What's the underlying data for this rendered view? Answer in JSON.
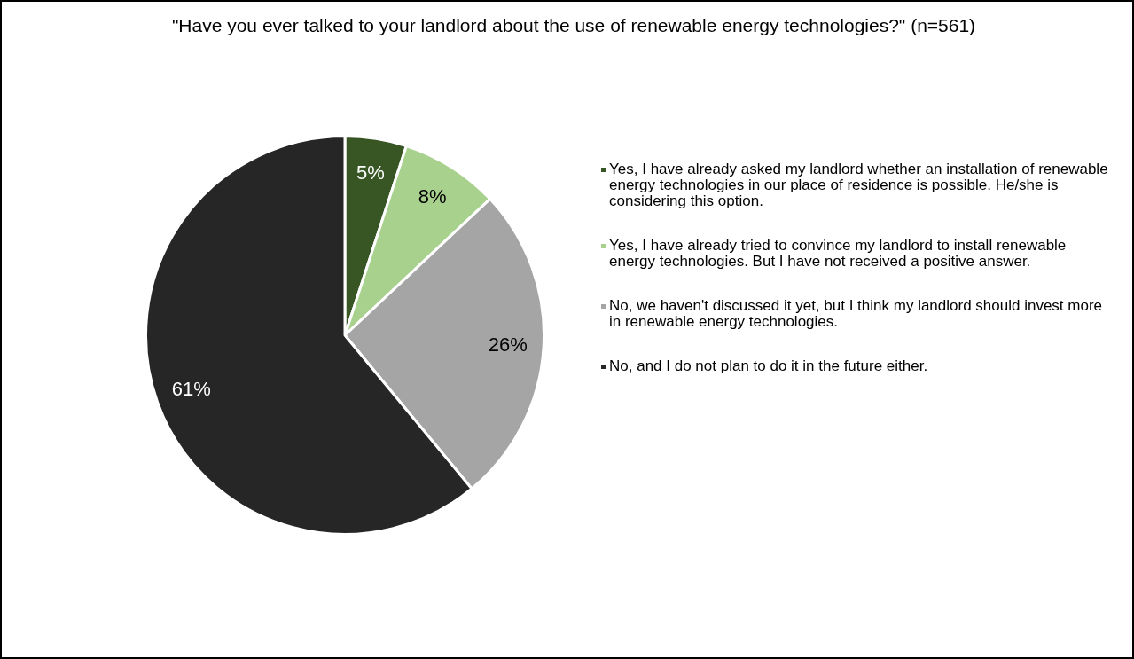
{
  "chart_data": {
    "type": "pie",
    "title": "\"Have you ever talked to your landlord about the use of renewable energy technologies?\" (n=561)",
    "categories": [
      "Yes, I have already asked my landlord whether an installation of renewable energy technologies in our place of residence is possible. He/she is considering this option.",
      "Yes, I have already tried to convince my landlord to install renewable energy technologies. But I have not received a positive answer.",
      "No, we haven't discussed it yet, but I think my landlord should invest more in renewable energy technologies.",
      "No, and I do not plan to do it in the future either."
    ],
    "values": [
      5,
      8,
      26,
      61
    ],
    "colors": [
      "#375623",
      "#a9d18e",
      "#a5a5a5",
      "#262626"
    ],
    "value_labels": [
      "5%",
      "8%",
      "26%",
      "61%"
    ],
    "legend": "right"
  }
}
